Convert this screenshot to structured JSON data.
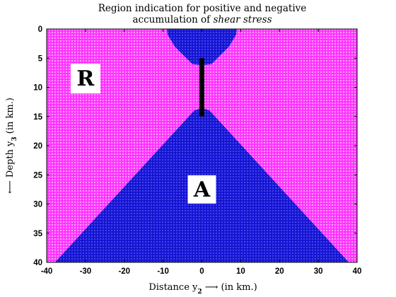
{
  "chart_data": {
    "type": "heatmap",
    "title_line1": "Region indication for positive and negative",
    "title_line2_prefix": "accumulation of ",
    "title_line2_italic": "shear stress",
    "xlabel_prefix": "Distance y",
    "xlabel_sub": "2",
    "xlabel_suffix": " ⟶ (in km.)",
    "ylabel_prefix": "⟵ Depth y",
    "ylabel_sub": "3",
    "ylabel_suffix": " (in km.)",
    "xlim": [
      -40,
      40
    ],
    "ylim": [
      0,
      40
    ],
    "y_inverted": true,
    "xticks": [
      -40,
      -30,
      -20,
      -10,
      0,
      10,
      20,
      30,
      40
    ],
    "yticks": [
      0,
      5,
      10,
      15,
      20,
      25,
      30,
      35,
      40
    ],
    "regions": [
      {
        "label": "R",
        "sign": "positive",
        "color": "#ff33ff",
        "label_at": [
          -30,
          8.5
        ]
      },
      {
        "label": "A",
        "sign": "negative",
        "color": "#1414d2",
        "label_at": [
          0,
          27.5
        ]
      }
    ],
    "region_A_upper_polygon": [
      [
        -9,
        0
      ],
      [
        9,
        0
      ],
      [
        8.8,
        1
      ],
      [
        7,
        3
      ],
      [
        2.5,
        6
      ],
      [
        0,
        6.2
      ],
      [
        -2.5,
        6
      ],
      [
        -7,
        3
      ],
      [
        -8.8,
        1
      ]
    ],
    "region_A_lower_polygon": [
      [
        0,
        13.5
      ],
      [
        2,
        14
      ],
      [
        42,
        43
      ],
      [
        -42,
        43
      ],
      [
        -2,
        14
      ]
    ],
    "fault": {
      "y2": 0,
      "depth_top": 5,
      "depth_bottom": 15,
      "color": "#000000"
    }
  }
}
